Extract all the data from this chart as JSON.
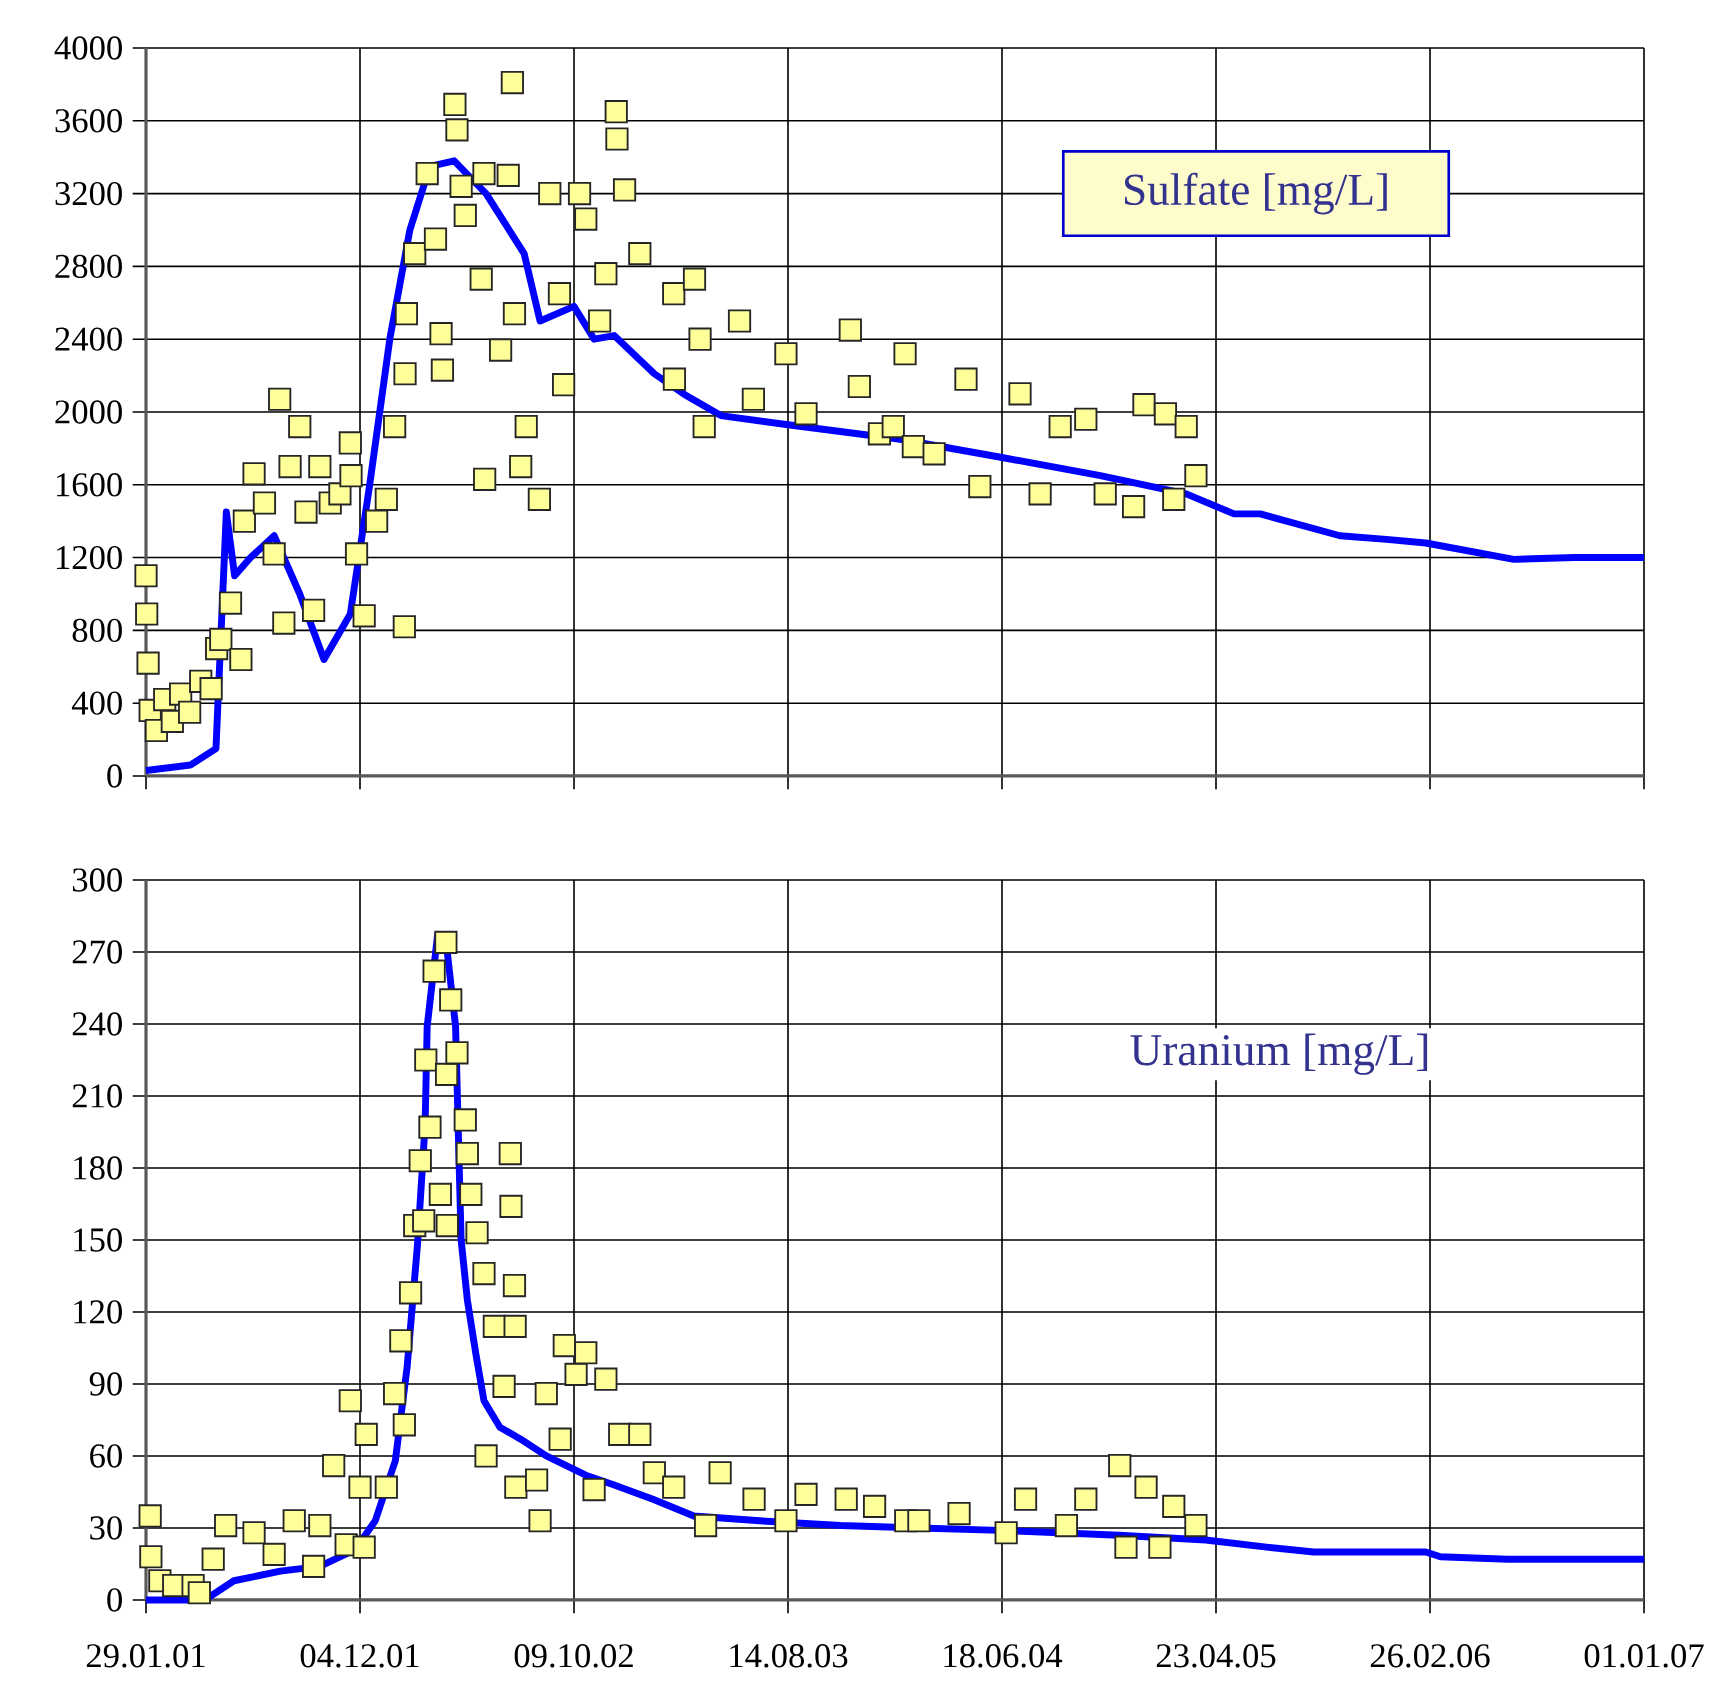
{
  "chart_data": [
    {
      "type": "scatter",
      "title": "Sulfate [mg/L]",
      "grid": true,
      "tick_labels": "y",
      "xlim": [
        "2001-01-29",
        "2007-01-01"
      ],
      "xticks": [
        {
          "value": "2001-01-29",
          "label": null
        },
        {
          "value": "2001-12-04",
          "label": null
        },
        {
          "value": "2002-10-09",
          "label": null
        },
        {
          "value": "2003-08-14",
          "label": null
        },
        {
          "value": "2004-06-18",
          "label": null
        },
        {
          "value": "2005-04-23",
          "label": null
        },
        {
          "value": "2006-02-26",
          "label": null
        },
        {
          "value": "2007-01-01",
          "label": null
        }
      ],
      "ylim": [
        0,
        4000
      ],
      "yticks": [
        0,
        400,
        800,
        1200,
        1600,
        2000,
        2400,
        2800,
        3200,
        3600,
        4000
      ],
      "series": [
        {
          "type": "line",
          "color": "#0000ff",
          "marker": "none",
          "line_style": "solid",
          "x": [
            "2001-01-29",
            "2001-04-03",
            "2001-05-10",
            "2001-05-25",
            "2001-06-06",
            "2001-06-29",
            "2001-08-02",
            "2001-09-08",
            "2001-10-13",
            "2001-11-20",
            "2001-12-18",
            "2002-01-16",
            "2002-02-14",
            "2002-03-15",
            "2002-04-19",
            "2002-06-04",
            "2002-07-29",
            "2002-08-21",
            "2002-10-09",
            "2002-11-07",
            "2002-12-06",
            "2003-02-02",
            "2003-03-20",
            "2003-05-09",
            "2003-08-14",
            "2004-01-23",
            "2004-06-18",
            "2004-11-07",
            "2005-03-11",
            "2005-05-19",
            "2005-06-26",
            "2005-10-19",
            "2005-12-25",
            "2006-02-20",
            "2006-06-27",
            "2006-09-23",
            "2007-01-01"
          ],
          "values": [
            30,
            60,
            150,
            1450,
            1100,
            1200,
            1320,
            1000,
            640,
            890,
            1600,
            2400,
            3000,
            3350,
            3380,
            3200,
            2870,
            2500,
            2580,
            2400,
            2420,
            2210,
            2090,
            1980,
            1930,
            1850,
            1750,
            1650,
            1550,
            1440,
            1440,
            1320,
            1300,
            1280,
            1190,
            1200,
            1200
          ]
        },
        {
          "color": "#ffff99",
          "marker": "square",
          "x": [
            "2001-01-29",
            "2001-01-30",
            "2001-02-01",
            "2001-02-04",
            "2001-02-13",
            "2001-02-25",
            "2001-03-08",
            "2001-03-20",
            "2001-04-02",
            "2001-04-18",
            "2001-05-03",
            "2001-05-11",
            "2001-05-17",
            "2001-05-31",
            "2001-06-15",
            "2001-06-20",
            "2001-07-04",
            "2001-07-19",
            "2001-08-02",
            "2001-08-10",
            "2001-08-16",
            "2001-08-25",
            "2001-09-08",
            "2001-09-17",
            "2001-09-28",
            "2001-10-07",
            "2001-10-22",
            "2001-11-05",
            "2001-11-20",
            "2001-11-21",
            "2001-11-29",
            "2001-12-10",
            "2001-12-28",
            "2002-01-11",
            "2002-01-23",
            "2002-02-06",
            "2002-02-07",
            "2002-02-09",
            "2002-02-21",
            "2002-03-11",
            "2002-03-23",
            "2002-03-31",
            "2002-04-02",
            "2002-04-20",
            "2002-04-23",
            "2002-04-29",
            "2002-05-05",
            "2002-05-28",
            "2002-06-01",
            "2002-06-02",
            "2002-06-25",
            "2002-07-06",
            "2002-07-12",
            "2002-07-15",
            "2002-07-24",
            "2002-08-01",
            "2002-08-20",
            "2002-09-04",
            "2002-09-18",
            "2002-09-24",
            "2002-10-17",
            "2002-10-26",
            "2002-11-15",
            "2002-11-24",
            "2002-12-09",
            "2002-12-10",
            "2002-12-21",
            "2003-01-12",
            "2003-03-02",
            "2003-03-03",
            "2003-04-01",
            "2003-04-09",
            "2003-04-15",
            "2003-06-05",
            "2003-06-25",
            "2003-08-11",
            "2003-09-09",
            "2003-11-12",
            "2003-11-25",
            "2003-12-24",
            "2004-01-13",
            "2004-01-30",
            "2004-02-11",
            "2004-03-12",
            "2004-04-27",
            "2004-05-17",
            "2004-07-14",
            "2004-08-12",
            "2004-09-10",
            "2004-10-17",
            "2004-11-14",
            "2004-12-25",
            "2005-01-09",
            "2005-02-09",
            "2005-02-21",
            "2005-03-11",
            "2005-03-25"
          ],
          "values": [
            1100,
            890,
            620,
            360,
            250,
            420,
            300,
            450,
            350,
            520,
            480,
            700,
            750,
            950,
            640,
            1400,
            1660,
            1500,
            1220,
            2070,
            840,
            1700,
            1920,
            1450,
            910,
            1700,
            1500,
            1550,
            1830,
            1650,
            1220,
            880,
            1400,
            1520,
            1920,
            820,
            2210,
            2540,
            2870,
            3310,
            2950,
            2430,
            2230,
            3690,
            3550,
            3240,
            3080,
            2730,
            3310,
            1630,
            2340,
            3300,
            3810,
            2540,
            1700,
            1920,
            1520,
            3200,
            2650,
            2150,
            3200,
            3060,
            2500,
            2760,
            3650,
            3500,
            3220,
            2870,
            2650,
            2180,
            2730,
            2400,
            1920,
            2500,
            2070,
            2320,
            1990,
            2450,
            2140,
            1880,
            1920,
            2320,
            1810,
            1770,
            2180,
            1590,
            2100,
            1550,
            1920,
            1960,
            1550,
            1480,
            2040,
            1990,
            1520,
            1920,
            1650
          ]
        }
      ]
    },
    {
      "type": "scatter",
      "title": "Uranium [mg/L]",
      "grid": true,
      "xlim": [
        "2001-01-29",
        "2007-01-01"
      ],
      "xticks": [
        {
          "value": "2001-01-29",
          "label": "29.01.01"
        },
        {
          "value": "2001-12-04",
          "label": "04.12.01"
        },
        {
          "value": "2002-10-09",
          "label": "09.10.02"
        },
        {
          "value": "2003-08-14",
          "label": "14.08.03"
        },
        {
          "value": "2004-06-18",
          "label": "18.06.04"
        },
        {
          "value": "2005-04-23",
          "label": "23.04.05"
        },
        {
          "value": "2006-02-26",
          "label": "26.02.06"
        },
        {
          "value": "2007-01-01",
          "label": "01.01.07"
        }
      ],
      "ylim": [
        0,
        300
      ],
      "yticks": [
        0,
        30,
        60,
        90,
        120,
        150,
        180,
        210,
        240,
        270,
        300
      ],
      "series": [
        {
          "type": "line",
          "color": "#0000ff",
          "marker": "none",
          "line_style": "solid",
          "x": [
            "2001-01-29",
            "2001-04-24",
            "2001-06-05",
            "2001-08-11",
            "2001-10-07",
            "2001-11-27",
            "2001-12-26",
            "2002-01-24",
            "2002-02-10",
            "2002-02-25",
            "2002-03-08",
            "2002-03-11",
            "2002-03-26",
            "2002-04-09",
            "2002-04-21",
            "2002-04-29",
            "2002-05-08",
            "2002-05-20",
            "2002-06-01",
            "2002-06-24",
            "2002-07-24",
            "2002-08-30",
            "2002-10-26",
            "2002-12-05",
            "2003-01-31",
            "2003-03-31",
            "2003-07-04",
            "2003-10-29",
            "2004-02-19",
            "2004-06-14",
            "2004-12-04",
            "2005-04-08",
            "2005-07-05",
            "2005-09-11",
            "2006-02-20",
            "2006-03-13",
            "2006-06-18",
            "2007-01-01"
          ],
          "values": [
            0,
            0,
            8,
            12,
            14,
            21,
            33,
            58,
            97,
            148,
            198,
            239,
            277,
            270,
            239,
            150,
            125,
            103,
            83,
            72,
            67,
            60,
            52,
            48,
            42,
            35,
            33,
            31,
            30,
            29,
            27,
            25,
            22,
            20,
            20,
            18,
            17,
            17
          ]
        },
        {
          "color": "#ffff99",
          "marker": "square",
          "x": [
            "2001-02-04",
            "2001-02-05",
            "2001-02-18",
            "2001-03-10",
            "2001-04-07",
            "2001-04-16",
            "2001-05-06",
            "2001-05-24",
            "2001-07-04",
            "2001-08-02",
            "2001-08-31",
            "2001-09-28",
            "2001-10-07",
            "2001-10-27",
            "2001-11-14",
            "2001-11-20",
            "2001-12-04",
            "2001-12-10",
            "2001-12-13",
            "2002-01-11",
            "2002-01-23",
            "2002-02-01",
            "2002-02-06",
            "2002-02-15",
            "2002-02-21",
            "2002-03-01",
            "2002-03-06",
            "2002-03-09",
            "2002-03-15",
            "2002-03-21",
            "2002-03-30",
            "2002-04-07",
            "2002-04-08",
            "2002-04-09",
            "2002-04-14",
            "2002-04-23",
            "2002-05-05",
            "2002-05-08",
            "2002-05-13",
            "2002-05-22",
            "2002-06-01",
            "2002-06-04",
            "2002-06-16",
            "2002-06-30",
            "2002-07-09",
            "2002-07-10",
            "2002-07-15",
            "2002-07-16",
            "2002-07-17",
            "2002-08-16",
            "2002-08-21",
            "2002-08-30",
            "2002-09-19",
            "2002-09-25",
            "2002-10-12",
            "2002-10-26",
            "2002-11-07",
            "2002-11-24",
            "2002-12-14",
            "2003-01-12",
            "2003-02-02",
            "2003-03-02",
            "2003-04-17",
            "2003-05-08",
            "2003-06-26",
            "2003-08-11",
            "2003-09-09",
            "2003-11-06",
            "2003-12-17",
            "2004-01-31",
            "2004-02-19",
            "2004-04-17",
            "2004-06-24",
            "2004-07-22",
            "2004-09-19",
            "2004-10-17",
            "2004-12-05",
            "2004-12-14",
            "2005-01-12",
            "2005-02-01",
            "2005-02-21",
            "2005-03-25"
          ],
          "values": [
            35,
            18,
            8,
            6,
            6,
            3,
            17,
            31,
            28,
            19,
            33,
            14,
            31,
            56,
            23,
            83,
            47,
            22,
            69,
            47,
            86,
            108,
            73,
            128,
            156,
            183,
            158,
            225,
            197,
            262,
            169,
            274,
            219,
            156,
            250,
            228,
            200,
            186,
            169,
            153,
            136,
            60,
            114,
            89,
            186,
            164,
            131,
            114,
            47,
            50,
            33,
            86,
            67,
            106,
            94,
            103,
            46,
            92,
            69,
            69,
            53,
            47,
            31,
            53,
            42,
            33,
            44,
            42,
            39,
            33,
            33,
            36,
            28,
            42,
            31,
            42,
            56,
            22,
            47,
            22,
            39,
            31
          ]
        }
      ]
    }
  ]
}
